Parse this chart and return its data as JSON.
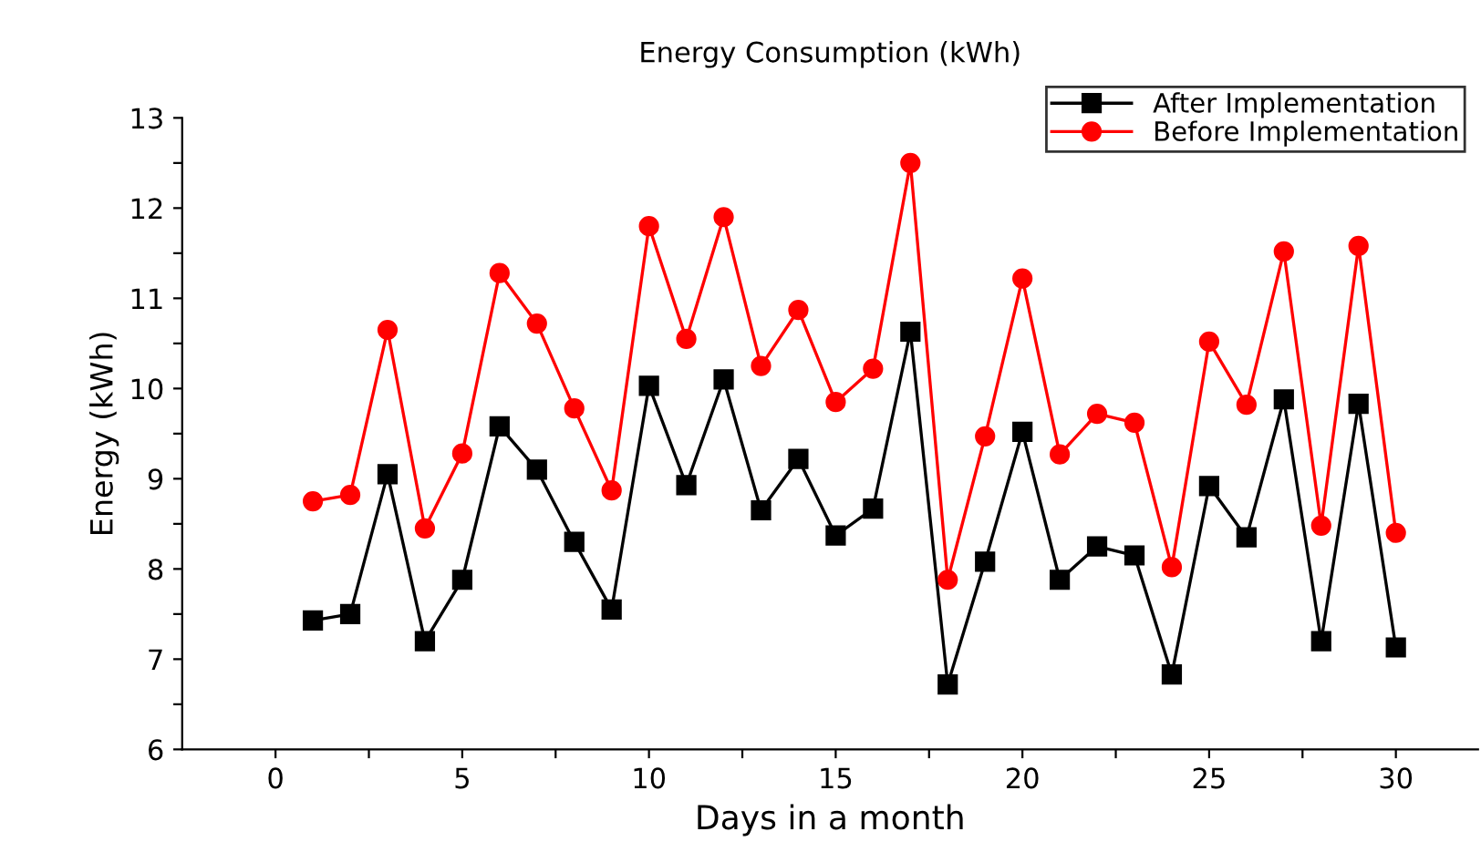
{
  "chart_data": {
    "type": "line",
    "title": "Energy Consumption (kWh)",
    "xlabel": "Days in a month",
    "ylabel": "Energy (kWh)",
    "x": [
      1,
      2,
      3,
      4,
      5,
      6,
      7,
      8,
      9,
      10,
      11,
      12,
      13,
      14,
      15,
      16,
      17,
      18,
      19,
      20,
      21,
      22,
      23,
      24,
      25,
      26,
      27,
      28,
      29,
      30
    ],
    "series": [
      {
        "name": "After Implementation",
        "color": "#000000",
        "marker": "square",
        "values": [
          7.43,
          7.5,
          9.05,
          7.2,
          7.88,
          9.58,
          9.1,
          8.3,
          7.55,
          10.03,
          8.93,
          10.1,
          8.65,
          9.22,
          8.37,
          8.67,
          10.63,
          6.72,
          8.08,
          9.52,
          7.88,
          8.25,
          8.15,
          6.83,
          8.92,
          8.35,
          9.88,
          7.2,
          9.83,
          7.13
        ]
      },
      {
        "name": "Before Implementation",
        "color": "#ff0000",
        "marker": "circle",
        "values": [
          8.75,
          8.82,
          10.65,
          8.45,
          9.28,
          11.28,
          10.72,
          9.78,
          8.87,
          11.8,
          10.55,
          11.9,
          10.25,
          10.87,
          9.85,
          10.22,
          12.5,
          7.88,
          9.47,
          11.22,
          9.27,
          9.72,
          9.62,
          8.02,
          10.52,
          9.82,
          11.52,
          8.48,
          11.58,
          8.4
        ]
      }
    ],
    "xlim": [
      -2.5,
      32.2
    ],
    "ylim": [
      6,
      13
    ],
    "xticks": [
      0,
      {
        "value": 2.5,
        "label": null
      },
      5,
      {
        "value": 7.5,
        "label": null
      },
      10,
      {
        "value": 12.5,
        "label": null
      },
      15,
      {
        "value": 17.5,
        "label": null
      },
      20,
      {
        "value": 22.5,
        "label": null
      },
      25,
      {
        "value": 27.5,
        "label": null
      },
      30
    ],
    "yticks": [
      6,
      {
        "value": 6.5,
        "label": null
      },
      7,
      {
        "value": 7.5,
        "label": null
      },
      8,
      {
        "value": 8.5,
        "label": null
      },
      9,
      {
        "value": 9.5,
        "label": null
      },
      10,
      {
        "value": 10.5,
        "label": null
      },
      11,
      {
        "value": 11.5,
        "label": null
      },
      12,
      {
        "value": 12.5,
        "label": null
      },
      13
    ],
    "grid": false,
    "legend": "top right",
    "line_style": "solid"
  }
}
